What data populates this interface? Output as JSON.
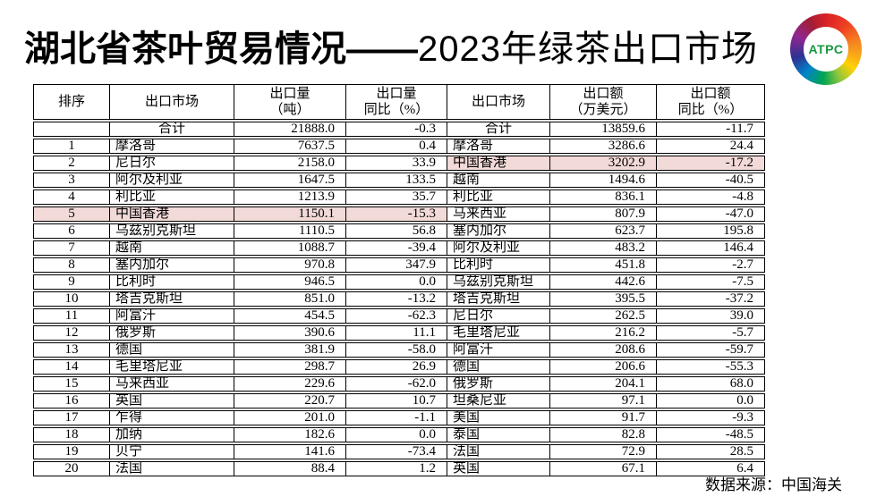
{
  "title": {
    "part1": "湖北省茶叶贸易情况——",
    "part2": "2023年绿茶出口市场"
  },
  "logo": {
    "text": "ATPC"
  },
  "colors": {
    "highlight": "#f2dad8",
    "logo_text": "#169a3e"
  },
  "table": {
    "headers": [
      {
        "line1": "排序",
        "line2": ""
      },
      {
        "line1": "出口市场",
        "line2": ""
      },
      {
        "line1": "出口量",
        "line2": "（吨）"
      },
      {
        "line1": "出口量",
        "line2": "同比（%）"
      },
      {
        "line1": "出口市场",
        "line2": ""
      },
      {
        "line1": "出口额",
        "line2": "（万美元）"
      },
      {
        "line1": "出口额",
        "line2": "同比（%）"
      }
    ],
    "total_row": {
      "rank": "",
      "market_l": "合计",
      "volume": "21888.0",
      "volume_yoy": "-0.3",
      "market_r": "合计",
      "value": "13859.6",
      "value_yoy": "-11.7",
      "is_total": true,
      "hl_left": false,
      "hl_right": false
    },
    "rows": [
      {
        "rank": "1",
        "market_l": "摩洛哥",
        "volume": "7637.5",
        "volume_yoy": "0.4",
        "market_r": "摩洛哥",
        "value": "3286.6",
        "value_yoy": "24.4",
        "hl_left": false,
        "hl_right": false
      },
      {
        "rank": "2",
        "market_l": "尼日尔",
        "volume": "2158.0",
        "volume_yoy": "33.9",
        "market_r": "中国香港",
        "value": "3202.9",
        "value_yoy": "-17.2",
        "hl_left": false,
        "hl_right": true
      },
      {
        "rank": "3",
        "market_l": "阿尔及利亚",
        "volume": "1647.5",
        "volume_yoy": "133.5",
        "market_r": "越南",
        "value": "1494.6",
        "value_yoy": "-40.5",
        "hl_left": false,
        "hl_right": false
      },
      {
        "rank": "4",
        "market_l": "利比亚",
        "volume": "1213.9",
        "volume_yoy": "35.7",
        "market_r": "利比亚",
        "value": "836.1",
        "value_yoy": "-4.8",
        "hl_left": false,
        "hl_right": false
      },
      {
        "rank": "5",
        "market_l": "中国香港",
        "volume": "1150.1",
        "volume_yoy": "-15.3",
        "market_r": "马来西亚",
        "value": "807.9",
        "value_yoy": "-47.0",
        "hl_left": true,
        "hl_right": false
      },
      {
        "rank": "6",
        "market_l": "乌兹别克斯坦",
        "volume": "1110.5",
        "volume_yoy": "56.8",
        "market_r": "塞内加尔",
        "value": "623.7",
        "value_yoy": "195.8",
        "hl_left": false,
        "hl_right": false
      },
      {
        "rank": "7",
        "market_l": "越南",
        "volume": "1088.7",
        "volume_yoy": "-39.4",
        "market_r": "阿尔及利亚",
        "value": "483.2",
        "value_yoy": "146.4",
        "hl_left": false,
        "hl_right": false
      },
      {
        "rank": "8",
        "market_l": "塞内加尔",
        "volume": "970.8",
        "volume_yoy": "347.9",
        "market_r": "比利时",
        "value": "451.8",
        "value_yoy": "-2.7",
        "hl_left": false,
        "hl_right": false
      },
      {
        "rank": "9",
        "market_l": "比利时",
        "volume": "946.5",
        "volume_yoy": "0.0",
        "market_r": "乌兹别克斯坦",
        "value": "442.6",
        "value_yoy": "-7.5",
        "hl_left": false,
        "hl_right": false
      },
      {
        "rank": "10",
        "market_l": "塔吉克斯坦",
        "volume": "851.0",
        "volume_yoy": "-13.2",
        "market_r": "塔吉克斯坦",
        "value": "395.5",
        "value_yoy": "-37.2",
        "hl_left": false,
        "hl_right": false
      },
      {
        "rank": "11",
        "market_l": "阿富汗",
        "volume": "454.5",
        "volume_yoy": "-62.3",
        "market_r": "尼日尔",
        "value": "262.5",
        "value_yoy": "39.0",
        "hl_left": false,
        "hl_right": false
      },
      {
        "rank": "12",
        "market_l": "俄罗斯",
        "volume": "390.6",
        "volume_yoy": "11.1",
        "market_r": "毛里塔尼亚",
        "value": "216.2",
        "value_yoy": "-5.7",
        "hl_left": false,
        "hl_right": false
      },
      {
        "rank": "13",
        "market_l": "德国",
        "volume": "381.9",
        "volume_yoy": "-58.0",
        "market_r": "阿富汗",
        "value": "208.6",
        "value_yoy": "-59.7",
        "hl_left": false,
        "hl_right": false
      },
      {
        "rank": "14",
        "market_l": "毛里塔尼亚",
        "volume": "298.7",
        "volume_yoy": "26.9",
        "market_r": "德国",
        "value": "206.6",
        "value_yoy": "-55.3",
        "hl_left": false,
        "hl_right": false
      },
      {
        "rank": "15",
        "market_l": "马来西亚",
        "volume": "229.6",
        "volume_yoy": "-62.0",
        "market_r": "俄罗斯",
        "value": "204.1",
        "value_yoy": "68.0",
        "hl_left": false,
        "hl_right": false
      },
      {
        "rank": "16",
        "market_l": "英国",
        "volume": "220.7",
        "volume_yoy": "10.7",
        "market_r": "坦桑尼亚",
        "value": "97.1",
        "value_yoy": "0.0",
        "hl_left": false,
        "hl_right": false
      },
      {
        "rank": "17",
        "market_l": "乍得",
        "volume": "201.0",
        "volume_yoy": "-1.1",
        "market_r": "美国",
        "value": "91.7",
        "value_yoy": "-9.3",
        "hl_left": false,
        "hl_right": false
      },
      {
        "rank": "18",
        "market_l": "加纳",
        "volume": "182.6",
        "volume_yoy": "0.0",
        "market_r": "泰国",
        "value": "82.8",
        "value_yoy": "-48.5",
        "hl_left": false,
        "hl_right": false
      },
      {
        "rank": "19",
        "market_l": "贝宁",
        "volume": "141.6",
        "volume_yoy": "-73.4",
        "market_r": "法国",
        "value": "72.9",
        "value_yoy": "28.5",
        "hl_left": false,
        "hl_right": false
      },
      {
        "rank": "20",
        "market_l": "法国",
        "volume": "88.4",
        "volume_yoy": "1.2",
        "market_r": "英国",
        "value": "67.1",
        "value_yoy": "6.4",
        "hl_left": false,
        "hl_right": false
      }
    ]
  },
  "footer": {
    "source": "数据来源：中国海关"
  }
}
